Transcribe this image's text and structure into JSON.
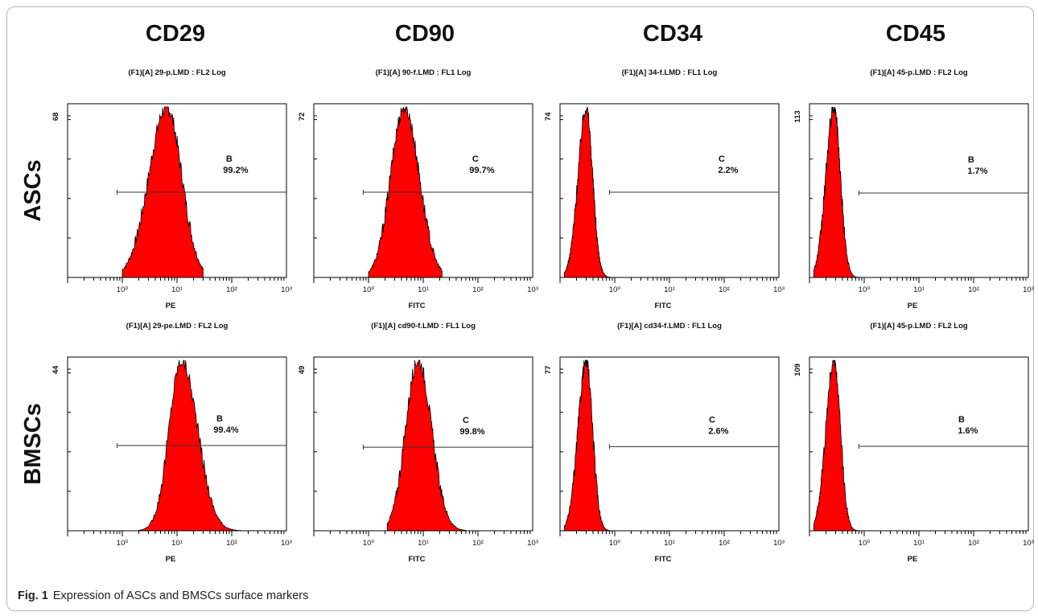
{
  "columns": [
    "CD29",
    "CD90",
    "CD34",
    "CD45"
  ],
  "rows": [
    "ASCs",
    "BMSCs"
  ],
  "caption": {
    "label": "Fig. 1",
    "text": "Expression of ASCs and BMSCs surface markers"
  },
  "colors": {
    "fill": "#ff0000",
    "outline": "#000000",
    "frame": "#000000"
  },
  "chart_data": [
    {
      "type": "area",
      "title": "(F1)[A] 29-p.LMD : FL2 Log",
      "xlabel": "PE",
      "x_scale": "log",
      "xlim": [
        0.1,
        1000
      ],
      "x_ticks": [
        "10⁰",
        "10¹",
        "10²",
        "10³"
      ],
      "y_max_label": "68",
      "y_max": 68,
      "gate": {
        "letter": "B",
        "percent": "99.2%",
        "x_start": 0.8,
        "y": 34
      },
      "peak_x": 6.5,
      "peak_y": 68,
      "spread_left": 0.55,
      "spread_right": 0.46,
      "extent": [
        1.0,
        30
      ]
    },
    {
      "type": "area",
      "title": "(F1)[A] 90-f.LMD : FL1 Log",
      "xlabel": "FITC",
      "x_scale": "log",
      "xlim": [
        0.1,
        1000
      ],
      "x_ticks": [
        "10⁰",
        "10¹",
        "10²",
        "10³"
      ],
      "y_max_label": "72",
      "y_max": 72,
      "gate": {
        "letter": "C",
        "percent": "99.7%",
        "x_start": 0.8,
        "y": 36
      },
      "peak_x": 4.5,
      "peak_y": 72,
      "spread_left": 0.42,
      "spread_right": 0.46,
      "extent": [
        1.0,
        22
      ]
    },
    {
      "type": "area",
      "title": "(F1)[A] 34-f.LMD : FL1 Log",
      "xlabel": "FITC",
      "x_scale": "log",
      "xlim": [
        0.1,
        1000
      ],
      "x_ticks": [
        "10⁰",
        "10¹",
        "10²",
        "10³"
      ],
      "y_max_label": "74",
      "y_max": 74,
      "gate": {
        "letter": "C",
        "percent": "2.2%",
        "x_start": 0.8,
        "y": 37
      },
      "peak_x": 0.3,
      "peak_y": 74,
      "spread_left": 0.25,
      "spread_right": 0.2,
      "extent": [
        0.12,
        0.85
      ]
    },
    {
      "type": "area",
      "title": "(F1)[A] 45-p.LMD : FL2 Log",
      "xlabel": "PE",
      "x_scale": "log",
      "xlim": [
        0.1,
        1000
      ],
      "x_ticks": [
        "10⁰",
        "10¹",
        "10²",
        "10³"
      ],
      "y_max_label": "113",
      "y_max": 113,
      "gate": {
        "letter": "B",
        "percent": "1.7%",
        "x_start": 0.8,
        "y": 56
      },
      "peak_x": 0.28,
      "peak_y": 113,
      "spread_left": 0.25,
      "spread_right": 0.2,
      "extent": [
        0.12,
        0.8
      ]
    },
    {
      "type": "area",
      "title": "(F1)[A] 29-pe.LMD : FL2 Log",
      "xlabel": "PE",
      "x_scale": "log",
      "xlim": [
        0.1,
        1000
      ],
      "x_ticks": [
        "10⁰",
        "10¹",
        "10²",
        "10³"
      ],
      "y_max_label": "44",
      "y_max": 44,
      "gate": {
        "letter": "B",
        "percent": "99.4%",
        "x_start": 0.8,
        "y": 22
      },
      "peak_x": 12,
      "peak_y": 44,
      "spread_left": 0.38,
      "spread_right": 0.5,
      "extent": [
        2.0,
        150
      ]
    },
    {
      "type": "area",
      "title": "(F1)[A] cd90-f.LMD : FL1 Log",
      "xlabel": "FITC",
      "x_scale": "log",
      "xlim": [
        0.1,
        1000
      ],
      "x_ticks": [
        "10⁰",
        "10¹",
        "10²",
        "10³"
      ],
      "y_max_label": "49",
      "y_max": 49,
      "gate": {
        "letter": "C",
        "percent": "99.8%",
        "x_start": 0.8,
        "y": 24
      },
      "peak_x": 8,
      "peak_y": 49,
      "spread_left": 0.38,
      "spread_right": 0.42,
      "extent": [
        2.2,
        60
      ]
    },
    {
      "type": "area",
      "title": "(F1)[A] cd34-f.LMD : FL1 Log",
      "xlabel": "FITC",
      "x_scale": "log",
      "xlim": [
        0.1,
        1000
      ],
      "x_ticks": [
        "10⁰",
        "10¹",
        "10²",
        "10³"
      ],
      "y_max_label": "77",
      "y_max": 77,
      "gate": {
        "letter": "C",
        "percent": "2.6%",
        "x_start": 0.8,
        "y": 38
      },
      "peak_x": 0.3,
      "peak_y": 77,
      "spread_left": 0.25,
      "spread_right": 0.2,
      "extent": [
        0.12,
        0.85
      ]
    },
    {
      "type": "area",
      "title": "(F1)[A] 45-p.LMD : FL2 Log",
      "xlabel": "PE",
      "x_scale": "log",
      "xlim": [
        0.1,
        1000
      ],
      "x_ticks": [
        "10⁰",
        "10¹",
        "10²",
        "10³"
      ],
      "y_max_label": "109",
      "y_max": 109,
      "gate": {
        "letter": "B",
        "percent": "1.6%",
        "x_start": 0.8,
        "y": 54
      },
      "peak_x": 0.28,
      "peak_y": 109,
      "spread_left": 0.25,
      "spread_right": 0.2,
      "extent": [
        0.12,
        0.8
      ]
    }
  ]
}
